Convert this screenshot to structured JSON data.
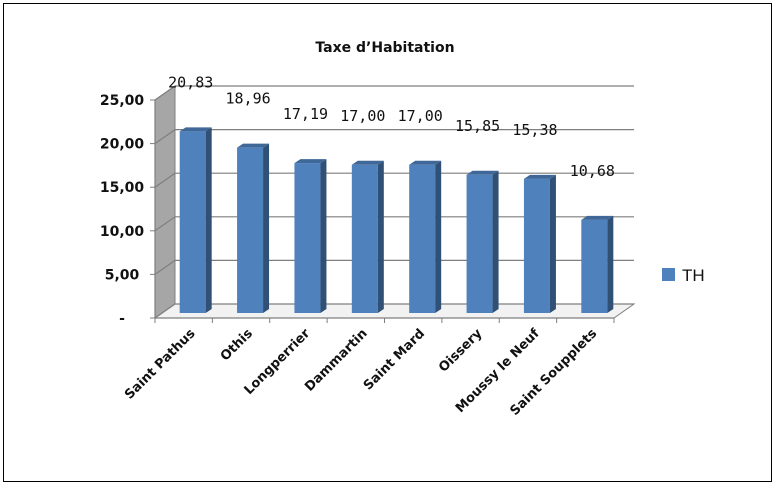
{
  "chart_data": {
    "type": "bar",
    "title": "Taxe d’Habitation",
    "categories": [
      "Saint Pathus",
      "Othis",
      "Longperrier",
      "Dammartin",
      "Saint Mard",
      "Oissery",
      "Moussy le Neuf",
      "Saint Soupplets"
    ],
    "series": [
      {
        "name": "TH",
        "color": "#4F81BD",
        "values": [
          20.83,
          18.96,
          17.19,
          17.0,
          17.0,
          15.85,
          15.38,
          10.68
        ]
      }
    ],
    "data_labels": [
      "20,83",
      "18,96",
      "17,19",
      "17,00",
      "17,00",
      "15,85",
      "15,38",
      "10,68"
    ],
    "yticks": [
      0,
      5,
      10,
      15,
      20,
      25
    ],
    "ytick_labels": [
      "-",
      "5,00",
      "10,00",
      "15,00",
      "20,00",
      "25,00"
    ],
    "ylim": [
      0,
      25
    ],
    "grid": true,
    "legend_position": "right",
    "style": "3d-column"
  }
}
